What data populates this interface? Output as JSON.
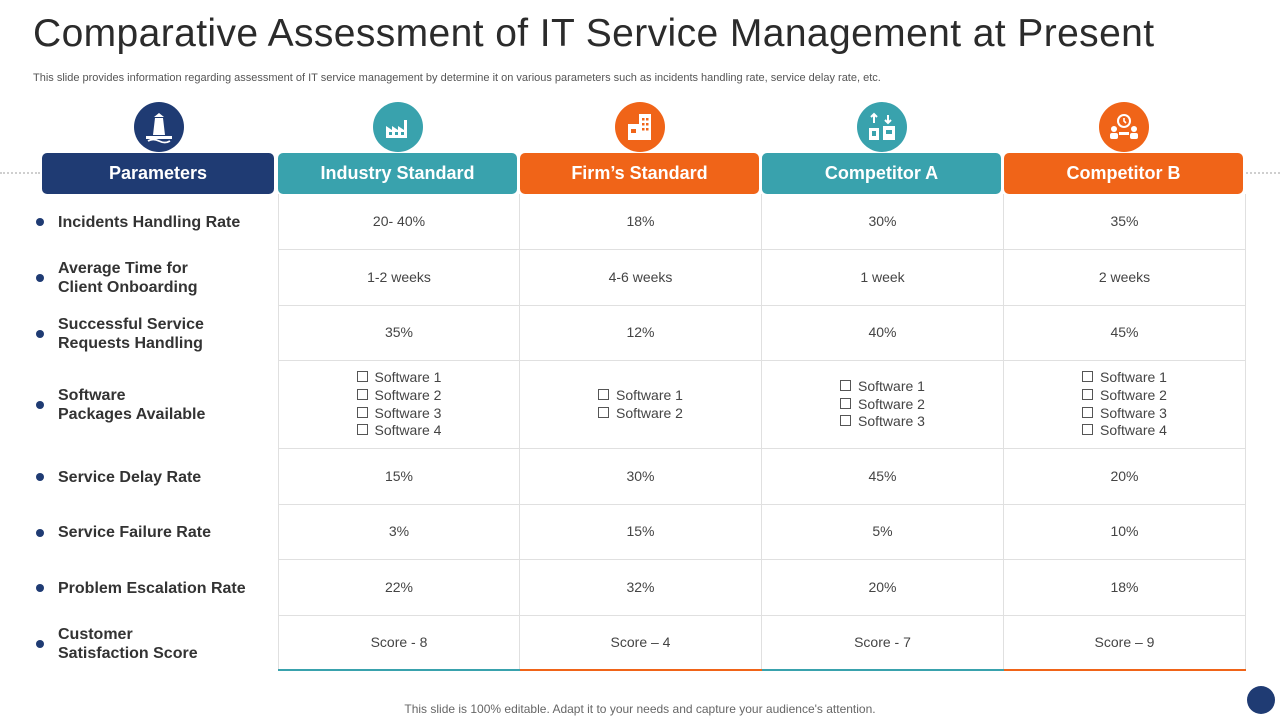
{
  "title": "Comparative Assessment of IT Service Management at Present",
  "subtitle": "This slide provides information regarding assessment of IT  service management by determine it on various parameters such as incidents handling rate, service delay rate, etc.",
  "footer": "This slide is 100% editable. Adapt it to your needs and capture your audience's attention.",
  "colors": {
    "navy": "#1f3b73",
    "teal": "#39a2ad",
    "orange": "#f06418",
    "line": "#e0e0e0"
  },
  "header": {
    "parameters": {
      "label": "Parameters",
      "icon": "lighthouse-icon",
      "color": "#1f3b73"
    },
    "columns": [
      {
        "label": "Industry Standard",
        "icon": "factory-icon",
        "color": "#39a2ad"
      },
      {
        "label": "Firm’s Standard",
        "icon": "office-building-icon",
        "color": "#f06418"
      },
      {
        "label": "Competitor A",
        "icon": "store-icon",
        "color": "#39a2ad"
      },
      {
        "label": "Competitor B",
        "icon": "meeting-icon",
        "color": "#f06418"
      }
    ]
  },
  "rows": [
    {
      "parameter": "Incidents Handling Rate",
      "values": [
        "20- 40%",
        "18%",
        "30%",
        "35%"
      ]
    },
    {
      "parameter": "Average Time for\nClient Onboarding",
      "values": [
        "1-2 weeks",
        "4-6 weeks",
        "1 week",
        "2 weeks"
      ]
    },
    {
      "parameter": "Successful Service\nRequests Handling",
      "values": [
        "35%",
        "12%",
        "40%",
        "45%"
      ]
    },
    {
      "parameter": "Software\nPackages Available",
      "lists": [
        [
          "Software 1",
          "Software 2",
          "Software 3",
          "Software 4"
        ],
        [
          "Software 1",
          "Software 2"
        ],
        [
          "Software 1",
          "Software 2",
          "Software 3"
        ],
        [
          "Software 1",
          "Software 2",
          "Software 3",
          "Software 4"
        ]
      ]
    },
    {
      "parameter": "Service Delay Rate",
      "values": [
        "15%",
        "30%",
        "45%",
        "20%"
      ]
    },
    {
      "parameter": "Service Failure Rate",
      "values": [
        "3%",
        "15%",
        "5%",
        "10%"
      ]
    },
    {
      "parameter": "Problem Escalation Rate",
      "values": [
        "22%",
        "32%",
        "20%",
        "18%"
      ]
    },
    {
      "parameter": "Customer\nSatisfaction Score",
      "values": [
        "Score - 8",
        "Score – 4",
        "Score - 7",
        "Score – 9"
      ]
    }
  ]
}
